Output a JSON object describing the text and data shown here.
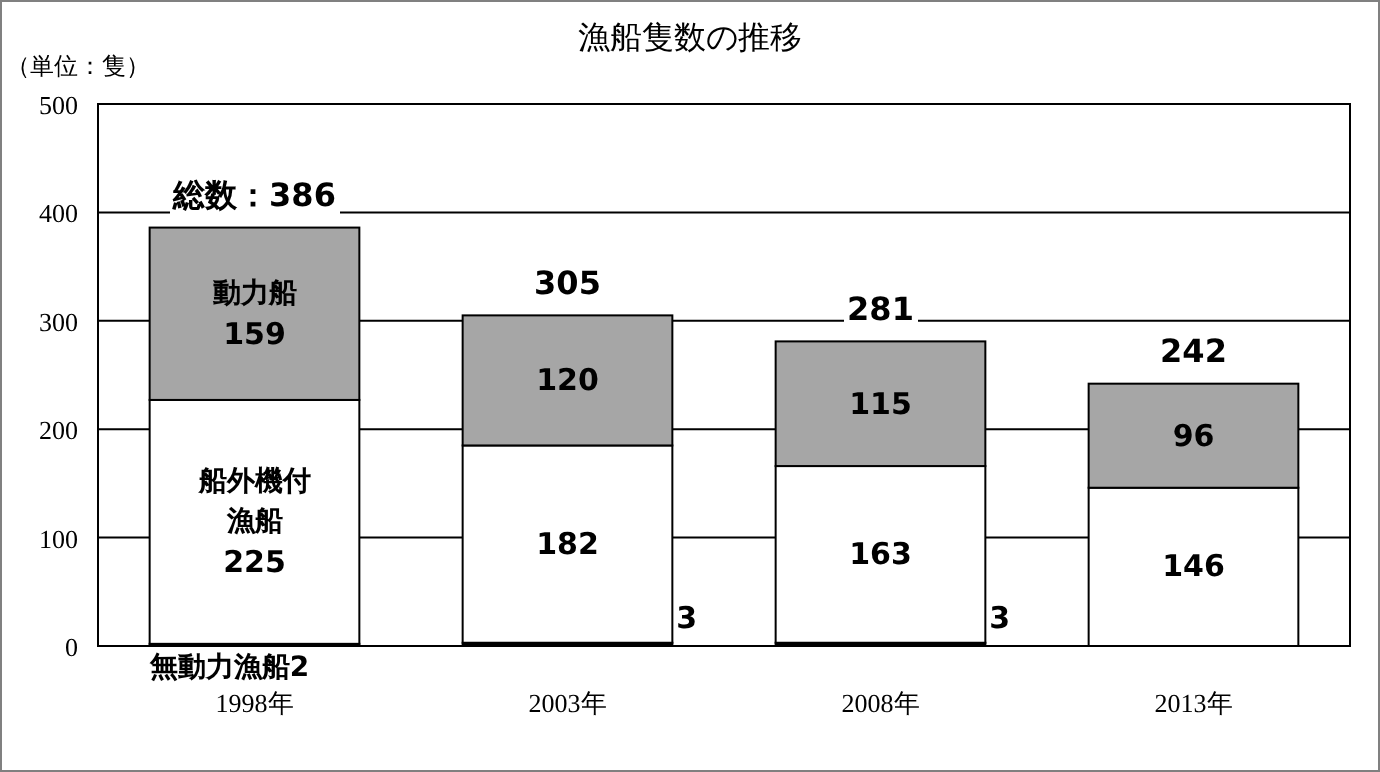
{
  "chart_data": {
    "type": "bar",
    "stacked": true,
    "title": "漁船隻数の推移",
    "ylabel": "（単位：隻）",
    "categories": [
      "1998年",
      "2003年",
      "2008年",
      "2013年"
    ],
    "series": [
      {
        "name": "無動力漁船",
        "color": "#000000",
        "values": [
          2,
          3,
          3,
          0
        ],
        "value_labels": [
          "2",
          "3",
          "3",
          null
        ]
      },
      {
        "name": "船外機付漁船",
        "color": "#ffffff",
        "values": [
          225,
          182,
          163,
          146
        ],
        "value_labels": [
          "225",
          "182",
          "163",
          "146"
        ]
      },
      {
        "name": "動力船",
        "color": "#a6a6a6",
        "values": [
          159,
          120,
          115,
          96
        ],
        "value_labels": [
          "159",
          "120",
          "115",
          "96"
        ]
      }
    ],
    "totals": [
      "総数：386",
      "305",
      "281",
      "242"
    ],
    "ylim": [
      0,
      500
    ],
    "yticks": [
      0,
      100,
      200,
      300,
      400,
      500
    ],
    "grid": "y"
  }
}
